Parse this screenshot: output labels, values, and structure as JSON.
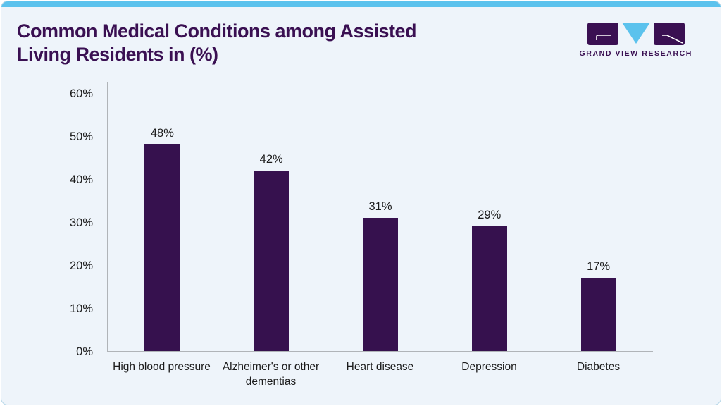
{
  "header": {
    "title_line1": "Common Medical Conditions among Assisted",
    "title_line2": "Living Residents in (%)",
    "logo_text": "GRAND VIEW RESEARCH"
  },
  "colors": {
    "accent_purple": "#3a1052",
    "bar_purple": "#36114e",
    "strip_blue": "#5bc2ed",
    "card_background": "#eef4fa",
    "axis_line": "#b0b4b8"
  },
  "chart_data": {
    "type": "bar",
    "title": "Common Medical Conditions among Assisted Living Residents in (%)",
    "categories": [
      "High blood pressure",
      "Alzheimer's or other dementias",
      "Heart disease",
      "Depression",
      "Diabetes"
    ],
    "values": [
      48,
      42,
      31,
      29,
      17
    ],
    "value_labels": [
      "48%",
      "42%",
      "31%",
      "29%",
      "17%"
    ],
    "xlabel": "",
    "ylabel": "",
    "ylim": [
      0,
      60
    ],
    "yticks": [
      0,
      10,
      20,
      30,
      40,
      50,
      60
    ],
    "ytick_labels": [
      "0%",
      "10%",
      "20%",
      "30%",
      "40%",
      "50%",
      "60%"
    ],
    "grid": false,
    "legend": null,
    "bar_color": "#36114e"
  }
}
